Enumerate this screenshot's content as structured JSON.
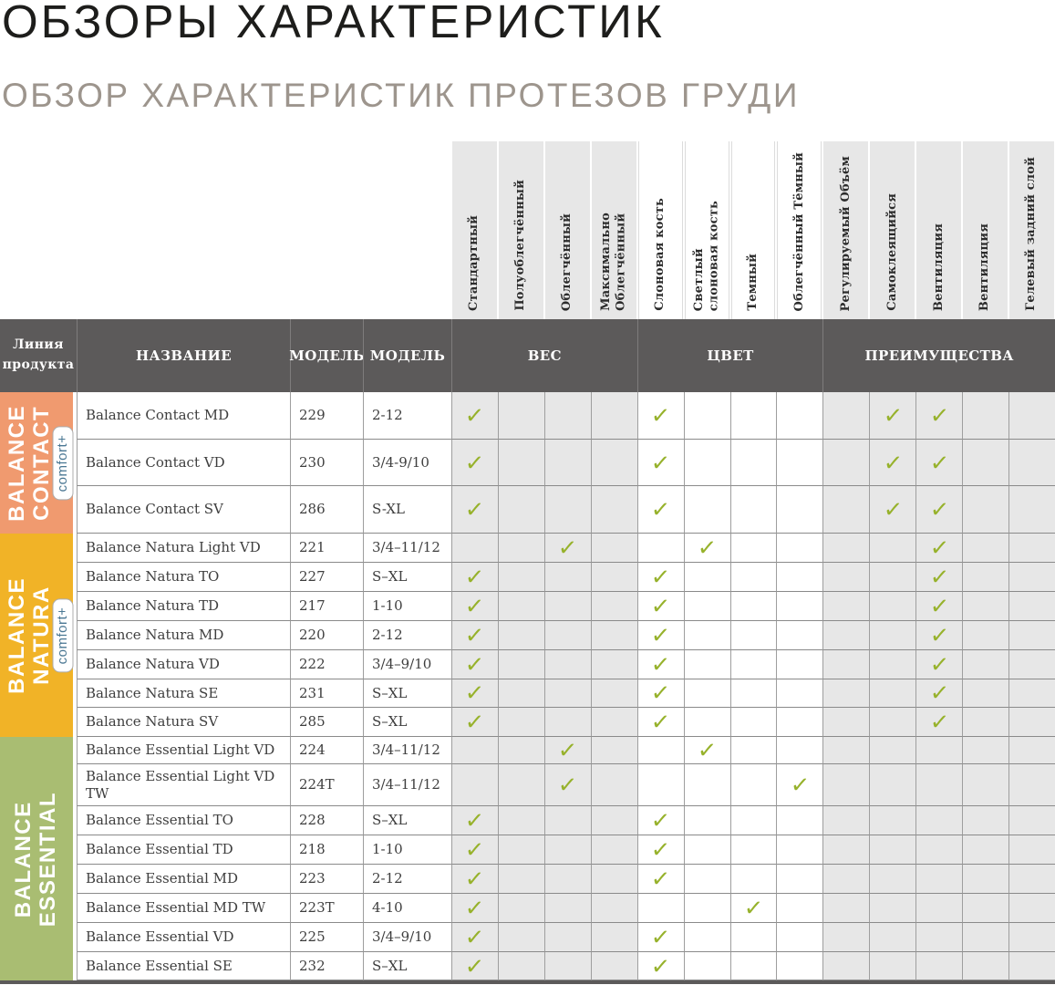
{
  "page": {
    "title": "ОБЗОРЫ ХАРАКТЕРИСТИК",
    "subtitle": "ОБЗОР ХАРАКТЕРИСТИК ПРОТЕЗОВ ГРУДИ"
  },
  "table": {
    "corner_header": "Линия продукта",
    "name_header": "НАЗВАНИЕ",
    "model_header": "МОДЕЛЬ",
    "model_header2": "МОДЕЛЬ",
    "groups": {
      "weight": "ВЕС",
      "color": "ЦВЕТ",
      "benefits": "ПРЕИМУЩЕСТВА"
    },
    "features": [
      {
        "label": "Стандартный",
        "group": "ВЕС"
      },
      {
        "label": "Полуоблегчённый",
        "group": "ВЕС"
      },
      {
        "label": "Облегчённый",
        "group": "ВЕС"
      },
      {
        "label": "Максимально\nОблегчённый",
        "group": "ВЕС"
      },
      {
        "label": "Слоновая кость",
        "group": "ЦВЕТ"
      },
      {
        "label": "Светлый\nслоновая кость",
        "group": "ЦВЕТ"
      },
      {
        "label": "Темный",
        "group": "ЦВЕТ"
      },
      {
        "label": "Облегчённый Тёмный",
        "group": "ЦВЕТ"
      },
      {
        "label": "Регулируемый Объём",
        "group": "ПРЕИМУЩЕСТВА"
      },
      {
        "label": "Самоклеящийся",
        "group": "ПРЕИМУЩЕСТВА"
      },
      {
        "label": "Вентиляция",
        "group": "ПРЕИМУЩЕСТВА"
      },
      {
        "label": "Вентиляция",
        "group": "ПРЕИМУЩЕСТВА"
      },
      {
        "label": "Гелевый задний слой",
        "group": "ПРЕИМУЩЕСТВА"
      }
    ],
    "check_glyph": "✓",
    "colors": {
      "check": "#97B22C",
      "header_bg": "#5C5A5A",
      "column_gray": "#E7E7E7",
      "badge_text": "#4A7793",
      "contact": "#F09A6F",
      "natura": "#F1B327",
      "essential": "#A9BD72"
    },
    "sections": [
      {
        "name": "BALANCE\nCONTACT",
        "badge": "comfort+",
        "color": "#F09A6F",
        "rows": [
          {
            "name": "Balance Contact MD",
            "model": "229",
            "size": "2-12",
            "checks": [
              1,
              5,
              10,
              11
            ]
          },
          {
            "name": "Balance Contact VD",
            "model": "230",
            "size": "3/4-9/10",
            "checks": [
              1,
              5,
              10,
              11
            ]
          },
          {
            "name": "Balance Contact SV",
            "model": "286",
            "size": "S-XL",
            "checks": [
              1,
              5,
              10,
              11
            ]
          }
        ]
      },
      {
        "name": "BALANCE\nNATURA",
        "badge": "comfort+",
        "color": "#F1B327",
        "rows": [
          {
            "name": "Balance Natura Light VD",
            "model": "221",
            "size": "3/4–11/12",
            "checks": [
              3,
              6,
              11
            ]
          },
          {
            "name": "Balance Natura TO",
            "model": "227",
            "size": "S–XL",
            "checks": [
              1,
              5,
              11
            ]
          },
          {
            "name": "Balance Natura TD",
            "model": "217",
            "size": "1-10",
            "checks": [
              1,
              5,
              11
            ]
          },
          {
            "name": "Balance Natura MD",
            "model": "220",
            "size": "2-12",
            "checks": [
              1,
              5,
              11
            ]
          },
          {
            "name": "Balance Natura VD",
            "model": "222",
            "size": "3/4–9/10",
            "checks": [
              1,
              5,
              11
            ]
          },
          {
            "name": "Balance Natura SE",
            "model": "231",
            "size": "S–XL",
            "checks": [
              1,
              5,
              11
            ]
          },
          {
            "name": "Balance Natura SV",
            "model": "285",
            "size": "S–XL",
            "checks": [
              1,
              5,
              11
            ]
          }
        ]
      },
      {
        "name": "BALANCE\nESSENTIAL",
        "badge": null,
        "color": "#A9BD72",
        "rows": [
          {
            "name": "Balance Essential Light VD",
            "model": "224",
            "size": "3/4–11/12",
            "checks": [
              3,
              6
            ]
          },
          {
            "name": "Balance Essential Light VD TW",
            "model": "224T",
            "size": "3/4–11/12",
            "checks": [
              3,
              8
            ]
          },
          {
            "name": "Balance Essential TO",
            "model": "228",
            "size": "S–XL",
            "checks": [
              1,
              5
            ]
          },
          {
            "name": "Balance Essential TD",
            "model": "218",
            "size": "1-10",
            "checks": [
              1,
              5
            ]
          },
          {
            "name": "Balance Essential MD",
            "model": "223",
            "size": "2-12",
            "checks": [
              1,
              5
            ]
          },
          {
            "name": "Balance Essential MD TW",
            "model": "223T",
            "size": "4-10",
            "checks": [
              1,
              7
            ]
          },
          {
            "name": "Balance Essential VD",
            "model": "225",
            "size": "3/4–9/10",
            "checks": [
              1,
              5
            ]
          },
          {
            "name": "Balance Essential SE",
            "model": "232",
            "size": "S–XL",
            "checks": [
              1,
              5
            ]
          }
        ]
      }
    ]
  }
}
